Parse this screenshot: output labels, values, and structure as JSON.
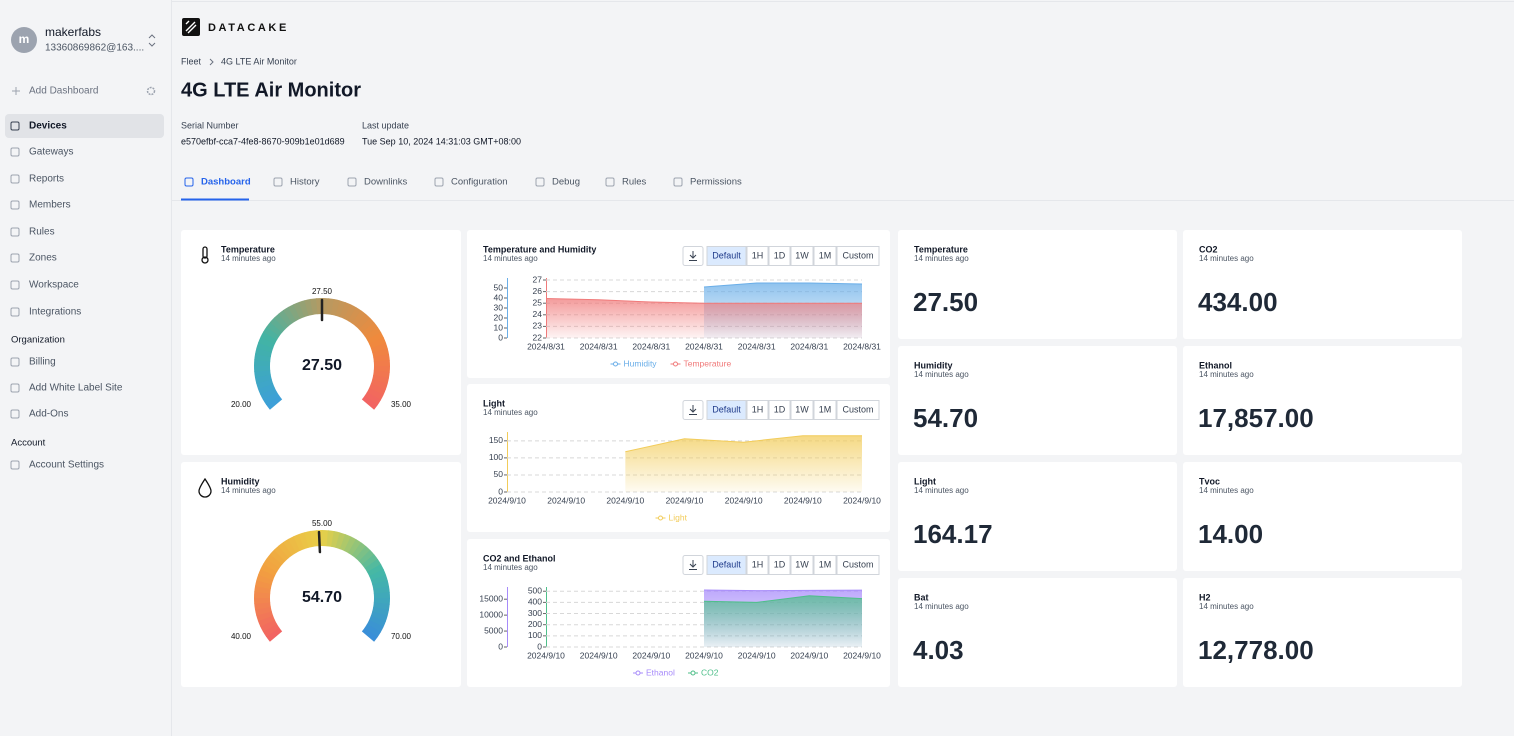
{
  "sidebar": {
    "avatar": "m",
    "user_name": "makerfabs",
    "user_email": "13360869862@163....",
    "add_dashboard": "Add Dashboard",
    "nav": [
      "Devices",
      "Gateways",
      "Reports",
      "Members",
      "Rules",
      "Zones",
      "Workspace",
      "Integrations"
    ],
    "organization": {
      "heading": "Organization",
      "items": [
        "Billing",
        "Add White Label Site",
        "Add-Ons"
      ]
    },
    "account": {
      "heading": "Account",
      "items": [
        "Account Settings"
      ]
    }
  },
  "header": {
    "logo": "DATACAKE",
    "breadcrumb": [
      "Fleet",
      "4G LTE Air Monitor"
    ],
    "title": "4G LTE Air Monitor",
    "meta": [
      {
        "label": "Serial Number",
        "value": "e570efbf-cca7-4fe8-8670-909b1e01d689"
      },
      {
        "label": "Last update",
        "value": "Tue Sep 10, 2024 14:31:03 GMT+08:00"
      }
    ],
    "tabs": [
      "Dashboard",
      "History",
      "Downlinks",
      "Configuration",
      "Debug",
      "Rules",
      "Permissions"
    ]
  },
  "widgets": {
    "range_buttons": [
      "Default",
      "1H",
      "1D",
      "1W",
      "1M",
      "Custom"
    ],
    "gauges": [
      {
        "title": "Temperature",
        "updated": "14 minutes ago",
        "value": 27.5,
        "value_label": "27.50",
        "min": 20,
        "min_label": "20.00",
        "max": 35,
        "max_label": "35.00",
        "mid": 27.5,
        "mid_label": "27.50",
        "colors": [
          "#3d9fd8",
          "#42b4a4",
          "#b59a62",
          "#f08a3c",
          "#f26462"
        ]
      },
      {
        "title": "Humidity",
        "updated": "14 minutes ago",
        "value": 54.7,
        "value_label": "54.70",
        "min": 40,
        "min_label": "40.00",
        "max": 70,
        "max_label": "70.00",
        "mid": 55,
        "mid_label": "55.00",
        "colors": [
          "#f26462",
          "#f2a040",
          "#e8d048",
          "#44b8a6",
          "#3a8fd8"
        ]
      }
    ],
    "charts": [
      {
        "title": "Temperature and Humidity",
        "updated": "14 minutes ago",
        "categories": [
          "2024/8/31",
          "2024/8/31",
          "2024/8/31",
          "2024/8/31",
          "2024/8/31",
          "2024/8/31",
          "2024/8/31"
        ],
        "ylim": [
          0,
          58
        ],
        "yticks": [
          0,
          10,
          20,
          30,
          40,
          50
        ],
        "y2lim": [
          22,
          27
        ],
        "y2ticks": [
          22,
          23,
          24,
          25,
          26,
          27
        ],
        "grid": true,
        "series": [
          {
            "name": "Humidity",
            "color": "#6aaee8",
            "values": [
              null,
              null,
              null,
              51,
              55,
              55,
              54
            ]
          },
          {
            "name": "Temperature",
            "color": "#f07a7a",
            "axis": "y2",
            "values": [
              25.4,
              25.3,
              25.1,
              25,
              25,
              25,
              25
            ]
          }
        ]
      },
      {
        "title": "Light",
        "updated": "14 minutes ago",
        "categories": [
          "2024/9/10",
          "2024/9/10",
          "2024/9/10",
          "2024/9/10",
          "2024/9/10",
          "2024/9/10",
          "2024/9/10"
        ],
        "ylim": [
          0,
          170
        ],
        "yticks": [
          0,
          50,
          100,
          150
        ],
        "grid": true,
        "series": [
          {
            "name": "Light",
            "color": "#f2cc5a",
            "values": [
              null,
              null,
              118,
              156,
              146,
              165,
              165
            ]
          }
        ]
      },
      {
        "title": "CO2 and Ethanol",
        "updated": "14 minutes ago",
        "categories": [
          "2024/9/10",
          "2024/9/10",
          "2024/9/10",
          "2024/9/10",
          "2024/9/10",
          "2024/9/10",
          "2024/9/10"
        ],
        "ylim": [
          0,
          18200
        ],
        "yticks": [
          0,
          5000,
          10000,
          15000
        ],
        "y2lim": [
          0,
          520
        ],
        "y2ticks": [
          0,
          100,
          200,
          300,
          400,
          500
        ],
        "grid": true,
        "series": [
          {
            "name": "Ethanol",
            "color": "#a78bfa",
            "values": [
              null,
              null,
              null,
              17900,
              17700,
              17750,
              17857
            ]
          },
          {
            "name": "CO2",
            "color": "#4fbf8a",
            "axis": "y2",
            "values": [
              null,
              null,
              null,
              410,
              400,
              460,
              434
            ]
          }
        ]
      }
    ],
    "values": [
      {
        "title": "Temperature",
        "updated": "14 minutes ago",
        "value": "27.50"
      },
      {
        "title": "Humidity",
        "updated": "14 minutes ago",
        "value": "54.70"
      },
      {
        "title": "Light",
        "updated": "14 minutes ago",
        "value": "164.17"
      },
      {
        "title": "Bat",
        "updated": "14 minutes ago",
        "value": "4.03"
      },
      {
        "title": "CO2",
        "updated": "14 minutes ago",
        "value": "434.00"
      },
      {
        "title": "Ethanol",
        "updated": "14 minutes ago",
        "value": "17,857.00"
      },
      {
        "title": "Tvoc",
        "updated": "14 minutes ago",
        "value": "14.00"
      },
      {
        "title": "H2",
        "updated": "14 minutes ago",
        "value": "12,778.00"
      }
    ]
  }
}
